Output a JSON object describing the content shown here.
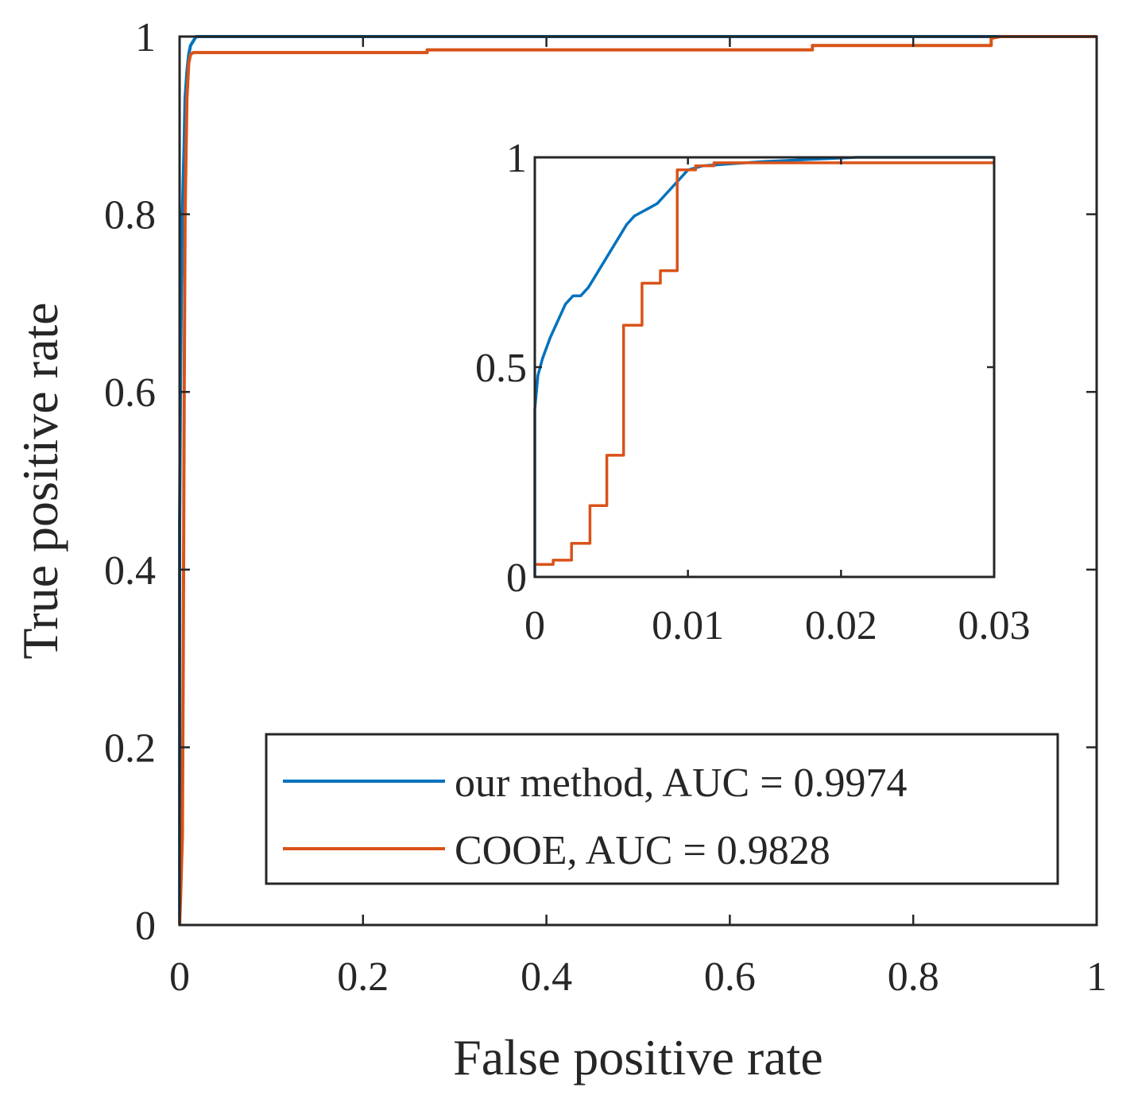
{
  "chart_data": [
    {
      "type": "line",
      "title": "",
      "xlabel": "False positive rate",
      "ylabel": "True positive rate",
      "xlim": [
        0,
        1
      ],
      "ylim": [
        0,
        1
      ],
      "xticks": [
        0,
        0.2,
        0.4,
        0.6,
        0.8,
        1
      ],
      "yticks": [
        0,
        0.2,
        0.4,
        0.6,
        0.8,
        1
      ],
      "xtick_labels": [
        "0",
        "0.2",
        "0.4",
        "0.6",
        "0.8",
        "1"
      ],
      "ytick_labels": [
        "0",
        "0.2",
        "0.4",
        "0.6",
        "0.8",
        "1"
      ],
      "grid": false,
      "legend_position": "bottom-right",
      "series": [
        {
          "name": "our method, AUC = 0.9974",
          "color": "#0072BD",
          "x": [
            0,
            0,
            0.001,
            0.002,
            0.003,
            0.005,
            0.006,
            0.008,
            0.01,
            0.012,
            0.015,
            0.018,
            0.025,
            0.9,
            1
          ],
          "y": [
            0,
            0.45,
            0.62,
            0.72,
            0.8,
            0.88,
            0.93,
            0.96,
            0.98,
            0.99,
            0.995,
            1.0,
            1.0,
            1.0,
            1.0
          ]
        },
        {
          "name": "COOE, AUC = 0.9828",
          "color": "#D95319",
          "x": [
            0,
            0.001,
            0.003,
            0.004,
            0.005,
            0.006,
            0.008,
            0.01,
            0.012,
            0.015,
            0.27,
            0.27,
            0.69,
            0.69,
            0.885,
            0.885,
            0.895,
            1
          ],
          "y": [
            0,
            0.03,
            0.1,
            0.3,
            0.6,
            0.8,
            0.93,
            0.97,
            0.98,
            0.982,
            0.982,
            0.985,
            0.985,
            0.99,
            0.99,
            0.998,
            1.0,
            1.0
          ]
        }
      ]
    },
    {
      "type": "line",
      "title": "",
      "xlabel": "",
      "ylabel": "",
      "xlim": [
        0,
        0.03
      ],
      "ylim": [
        0,
        1
      ],
      "xticks": [
        0,
        0.01,
        0.02,
        0.03
      ],
      "yticks": [
        0,
        0.5,
        1
      ],
      "xtick_labels": [
        "0",
        "0.01",
        "0.02",
        "0.03"
      ],
      "ytick_labels": [
        "0",
        "0.5",
        "1"
      ],
      "grid": false,
      "legend_position": "none",
      "series": [
        {
          "name": "our method, AUC = 0.9974",
          "color": "#0072BD",
          "x": [
            0,
            0,
            0.0002,
            0.0005,
            0.001,
            0.0015,
            0.002,
            0.0025,
            0.003,
            0.0035,
            0.004,
            0.0045,
            0.005,
            0.0055,
            0.006,
            0.0065,
            0.007,
            0.0075,
            0.008,
            0.0085,
            0.009,
            0.0095,
            0.01,
            0.011,
            0.013,
            0.015,
            0.018,
            0.021,
            0.03
          ],
          "y": [
            0,
            0.4,
            0.48,
            0.52,
            0.57,
            0.61,
            0.65,
            0.67,
            0.67,
            0.69,
            0.72,
            0.75,
            0.78,
            0.81,
            0.84,
            0.86,
            0.87,
            0.88,
            0.89,
            0.91,
            0.93,
            0.95,
            0.97,
            0.98,
            0.985,
            0.99,
            0.995,
            1.0,
            1.0
          ]
        },
        {
          "name": "COOE, AUC = 0.9828",
          "color": "#D95319",
          "x": [
            0,
            0.0003,
            0.0003,
            0.0012,
            0.0012,
            0.0024,
            0.0024,
            0.0036,
            0.0036,
            0.0047,
            0.0047,
            0.0058,
            0.0058,
            0.007,
            0.007,
            0.0082,
            0.0082,
            0.0093,
            0.0093,
            0.0105,
            0.0105,
            0.0117,
            0.0117,
            0.03
          ],
          "y": [
            0.03,
            0.03,
            0.03,
            0.03,
            0.04,
            0.04,
            0.08,
            0.08,
            0.17,
            0.17,
            0.29,
            0.29,
            0.6,
            0.6,
            0.7,
            0.7,
            0.73,
            0.73,
            0.97,
            0.97,
            0.98,
            0.98,
            0.987,
            0.987
          ]
        }
      ]
    }
  ]
}
